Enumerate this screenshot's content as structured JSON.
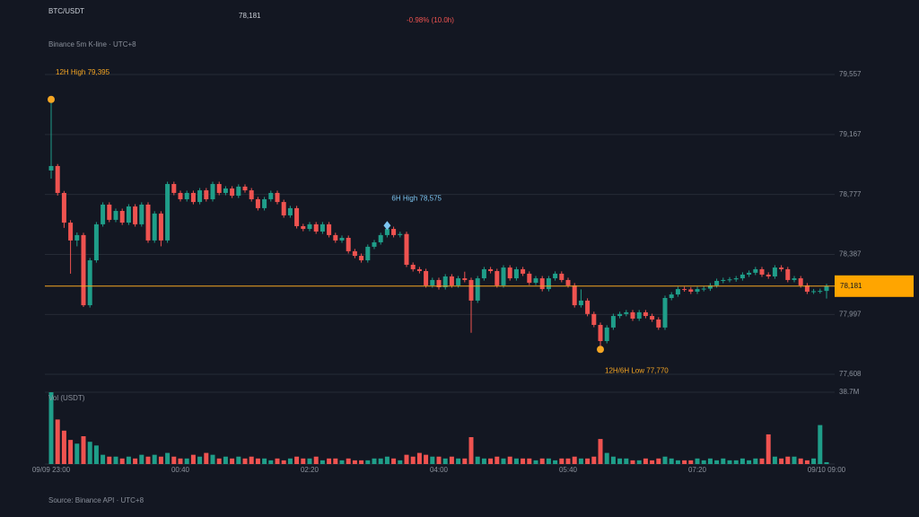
{
  "chart_data": {
    "type": "candlestick",
    "title": "BTC/USDT",
    "subtitle": "Binance 5m K-line · UTC+8",
    "change": "-0.98% (10.0h)",
    "source": "Source: Binance API · UTC+8",
    "volume_label": "Vol (USDT)",
    "last_price": {
      "value": 78181,
      "label": "78,181"
    },
    "up_color": "#1f9e89",
    "down_color": "#ef5350",
    "last_color": "#f5a623",
    "ylim": [
      77608,
      79557
    ],
    "yticks": [
      {
        "value": 79557,
        "label": "79,557"
      },
      {
        "value": 79167,
        "label": "79,167"
      },
      {
        "value": 78777,
        "label": "78,777"
      },
      {
        "value": 78387,
        "label": "78,387"
      },
      {
        "value": 77997,
        "label": "77,997"
      },
      {
        "value": 77608,
        "label": "77,608"
      }
    ],
    "vol_ylim": [
      0,
      38.7
    ],
    "vol_yticks": [
      {
        "value": 38.7,
        "label": "38.7M"
      }
    ],
    "annotations": [
      {
        "text": "12H High 79,395",
        "value": 79395,
        "color": "#f5a623"
      },
      {
        "text": "6H High 78,575",
        "value": 78575,
        "color": "#7cc4f0"
      },
      {
        "text": "12H/6H Low 77,770",
        "value": 77770,
        "color": "#f5a623"
      }
    ],
    "categories": [
      "09/09 23:00",
      null,
      null,
      null,
      null,
      null,
      null,
      null,
      null,
      null,
      null,
      null,
      null,
      null,
      null,
      null,
      null,
      null,
      null,
      null,
      "00:40",
      null,
      null,
      null,
      null,
      null,
      null,
      null,
      null,
      null,
      null,
      null,
      null,
      null,
      null,
      null,
      null,
      null,
      null,
      null,
      "02:20",
      null,
      null,
      null,
      null,
      null,
      null,
      null,
      null,
      null,
      null,
      null,
      null,
      null,
      null,
      null,
      null,
      null,
      null,
      null,
      "04:00",
      null,
      null,
      null,
      null,
      null,
      null,
      null,
      null,
      null,
      null,
      null,
      null,
      null,
      null,
      null,
      null,
      null,
      null,
      null,
      "05:40",
      null,
      null,
      null,
      null,
      null,
      null,
      null,
      null,
      null,
      null,
      null,
      null,
      null,
      null,
      null,
      null,
      null,
      null,
      null,
      "07:20",
      null,
      null,
      null,
      null,
      null,
      null,
      null,
      null,
      null,
      null,
      null,
      null,
      null,
      null,
      null,
      null,
      null,
      null,
      null,
      "09/10 09:00"
    ],
    "open": [
      78933,
      78962,
      78787,
      78594,
      78478,
      78513,
      78057,
      78349,
      78583,
      78711,
      78612,
      78670,
      78594,
      78699,
      78583,
      78711,
      78478,
      78653,
      78478,
      78845,
      78787,
      78746,
      78787,
      78728,
      78804,
      78746,
      78845,
      78787,
      78816,
      78769,
      78828,
      78804,
      78746,
      78688,
      78746,
      78787,
      78728,
      78641,
      78688,
      78571,
      78553,
      78583,
      78536,
      78583,
      78513,
      78478,
      78495,
      78408,
      78378,
      78349,
      78437,
      78466,
      78513,
      78553,
      78513,
      78520,
      78320,
      78291,
      78279,
      78186,
      78221,
      78174,
      78244,
      78186,
      78232,
      78221,
      78087,
      78232,
      78291,
      78279,
      78186,
      78302,
      78232,
      78291,
      78262,
      78203,
      78232,
      78162,
      78232,
      78262,
      78221,
      78186,
      78057,
      78087,
      78000,
      77929,
      77824,
      77912,
      77987,
      78000,
      78011,
      77970,
      78011,
      77987,
      77964,
      77912,
      78104,
      78127,
      78162,
      78160,
      78145,
      78162,
      78165,
      78186,
      78215,
      78221,
      78225,
      78232,
      78256,
      78268,
      78291,
      78256,
      78244,
      78302,
      78291,
      78221,
      78232,
      78186,
      78145,
      78148,
      78150
    ],
    "high": [
      79395,
      78975,
      78800,
      78610,
      78530,
      78528,
      78364,
      78598,
      78726,
      78726,
      78685,
      78685,
      78714,
      78714,
      78726,
      78726,
      78668,
      78668,
      78860,
      78860,
      78802,
      78802,
      78802,
      78819,
      78819,
      78860,
      78860,
      78831,
      78831,
      78843,
      78843,
      78819,
      78761,
      78761,
      78802,
      78802,
      78743,
      78703,
      78703,
      78586,
      78598,
      78598,
      78598,
      78598,
      78528,
      78510,
      78510,
      78423,
      78393,
      78452,
      78481,
      78528,
      78575,
      78568,
      78535,
      78535,
      78335,
      78306,
      78294,
      78236,
      78236,
      78259,
      78259,
      78247,
      78275,
      78236,
      78247,
      78306,
      78306,
      78294,
      78317,
      78317,
      78306,
      78306,
      78277,
      78247,
      78247,
      78247,
      78277,
      78277,
      78236,
      78201,
      78160,
      78102,
      78015,
      77944,
      77927,
      78002,
      78015,
      78026,
      78026,
      78026,
      78026,
      78002,
      77979,
      78119,
      78142,
      78177,
      78177,
      78175,
      78177,
      78180,
      78201,
      78230,
      78236,
      78240,
      78247,
      78271,
      78283,
      78306,
      78306,
      78271,
      78317,
      78317,
      78306,
      78247,
      78247,
      78201,
      78163,
      78165,
      78196
    ],
    "low": [
      78880,
      78770,
      78560,
      78262,
      78440,
      78046,
      78042,
      78334,
      78568,
      78597,
      78597,
      78579,
      78579,
      78568,
      78568,
      78463,
      78463,
      78440,
      78463,
      78772,
      78731,
      78731,
      78713,
      78713,
      78731,
      78731,
      78772,
      78772,
      78754,
      78754,
      78789,
      78731,
      78673,
      78673,
      78731,
      78713,
      78626,
      78626,
      78556,
      78538,
      78538,
      78521,
      78521,
      78498,
      78463,
      78463,
      78393,
      78363,
      78334,
      78334,
      78422,
      78451,
      78498,
      78498,
      78498,
      78305,
      78276,
      78264,
      78171,
      78171,
      78159,
      78159,
      78171,
      78171,
      78206,
      77878,
      78072,
      78217,
      78264,
      78171,
      78171,
      78217,
      78217,
      78247,
      78188,
      78188,
      78147,
      78147,
      78217,
      78206,
      78171,
      78042,
      78042,
      77985,
      77914,
      77770,
      77809,
      77897,
      77972,
      77985,
      77955,
      77955,
      77972,
      77949,
      77897,
      77897,
      78089,
      78112,
      78145,
      78130,
      78130,
      78147,
      78150,
      78171,
      78200,
      78206,
      78210,
      78217,
      78241,
      78253,
      78241,
      78229,
      78229,
      78276,
      78206,
      78206,
      78171,
      78130,
      78130,
      78133,
      78100
    ],
    "close": [
      78962,
      78787,
      78594,
      78478,
      78513,
      78057,
      78349,
      78583,
      78711,
      78612,
      78670,
      78594,
      78699,
      78583,
      78711,
      78478,
      78653,
      78478,
      78845,
      78787,
      78746,
      78787,
      78728,
      78804,
      78746,
      78845,
      78787,
      78816,
      78769,
      78828,
      78804,
      78746,
      78688,
      78746,
      78787,
      78728,
      78641,
      78688,
      78571,
      78553,
      78583,
      78536,
      78583,
      78513,
      78478,
      78495,
      78408,
      78378,
      78349,
      78437,
      78466,
      78513,
      78553,
      78513,
      78520,
      78320,
      78291,
      78279,
      78186,
      78221,
      78174,
      78244,
      78186,
      78232,
      78221,
      78087,
      78232,
      78291,
      78279,
      78186,
      78302,
      78232,
      78291,
      78262,
      78203,
      78232,
      78162,
      78232,
      78262,
      78221,
      78186,
      78057,
      78087,
      78000,
      77929,
      77824,
      77912,
      77987,
      78000,
      78011,
      77970,
      78011,
      77987,
      77964,
      77912,
      78104,
      78127,
      78162,
      78160,
      78145,
      78162,
      78165,
      78186,
      78215,
      78221,
      78225,
      78232,
      78256,
      78268,
      78291,
      78256,
      78244,
      78302,
      78291,
      78221,
      78232,
      78186,
      78145,
      78148,
      78150,
      78181
    ],
    "volume": [
      38.7,
      24,
      18,
      13,
      11,
      15,
      12,
      10,
      5,
      4,
      4,
      3,
      4,
      3,
      5,
      4,
      5,
      4,
      6,
      4,
      3,
      3,
      5,
      4,
      6,
      5,
      3,
      4,
      3,
      4,
      3,
      4,
      3,
      3,
      2,
      3,
      2,
      3,
      4,
      3,
      3,
      4,
      2,
      3,
      3,
      2,
      3,
      2,
      2,
      2,
      3,
      3,
      4,
      3,
      2,
      5,
      4,
      6,
      5,
      4,
      4,
      3,
      4,
      3,
      3,
      14.5,
      4,
      3,
      3,
      4,
      3,
      4,
      3,
      3,
      3,
      2,
      3,
      3,
      2,
      3,
      3,
      4,
      3,
      3,
      4,
      13.5,
      6,
      4,
      3,
      3,
      2,
      2,
      3,
      2,
      3,
      4,
      3,
      2,
      2,
      2,
      3,
      2,
      3,
      2,
      3,
      2,
      2,
      3,
      2,
      3,
      3,
      16,
      4,
      3,
      4,
      4,
      3,
      2,
      3,
      21,
      1
    ]
  }
}
